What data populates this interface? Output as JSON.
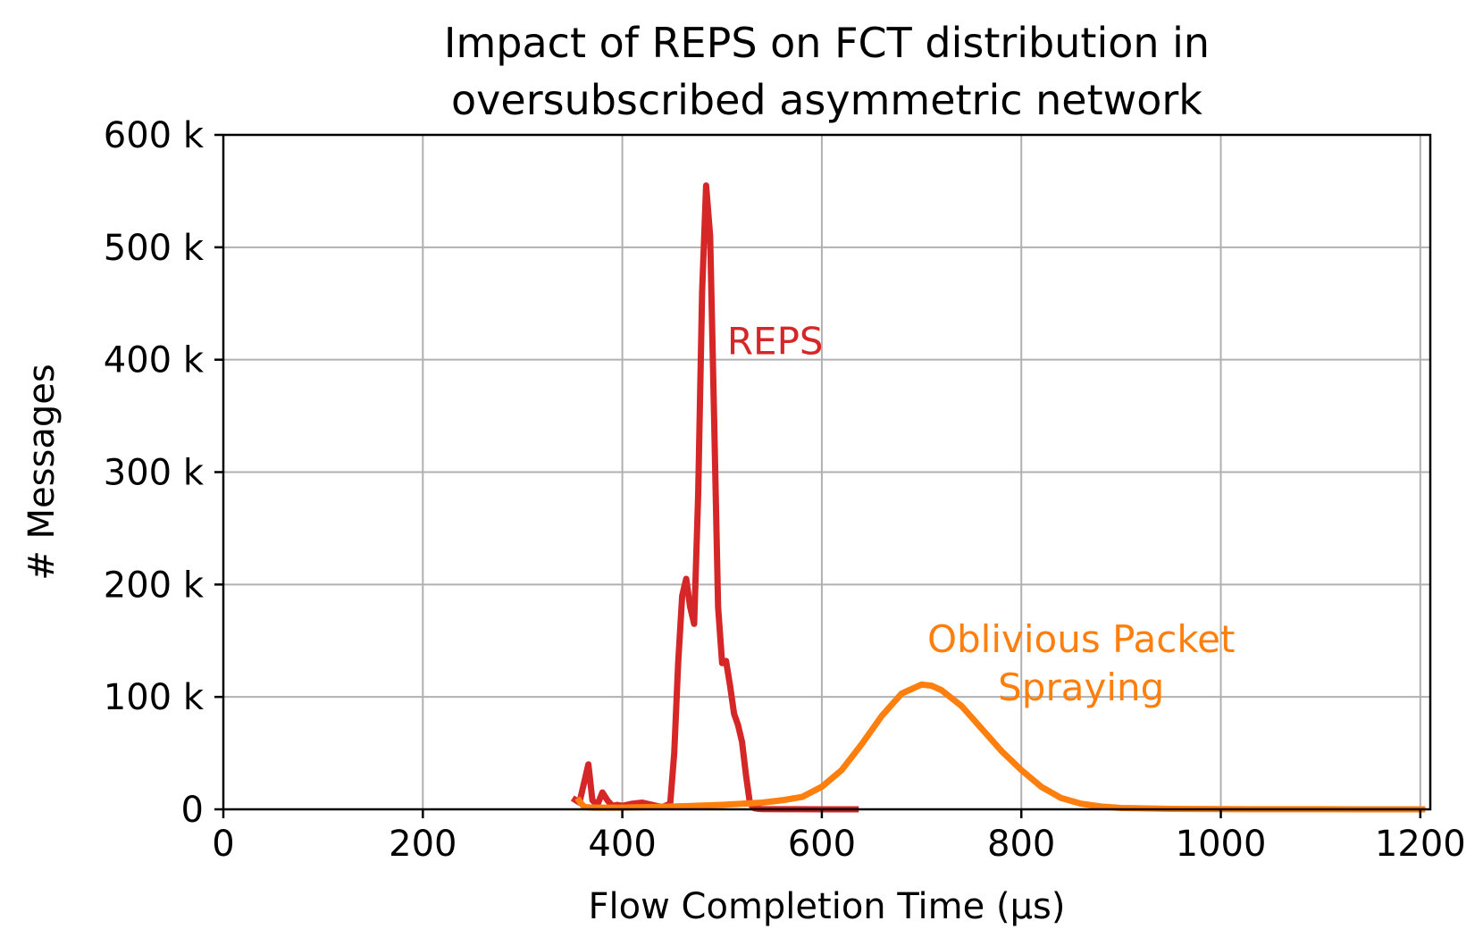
{
  "chart_data": {
    "type": "line",
    "title_lines": [
      "Impact of REPS on FCT distribution in",
      "oversubscribed asymmetric network"
    ],
    "xlabel": "Flow Completion Time (µs)",
    "ylabel": "# Messages",
    "xlim": [
      0,
      1210
    ],
    "ylim": [
      0,
      600000
    ],
    "grid": true,
    "x_ticks": [
      0,
      200,
      400,
      600,
      800,
      1000,
      1200
    ],
    "x_tick_labels": [
      "0",
      "200",
      "400",
      "600",
      "800",
      "1000",
      "1200"
    ],
    "y_ticks": [
      0,
      100000,
      200000,
      300000,
      400000,
      500000,
      600000
    ],
    "y_tick_labels": [
      "0",
      "100 k",
      "200 k",
      "300 k",
      "400 k",
      "500 k",
      "600 k"
    ],
    "series": [
      {
        "name": "REPS",
        "color": "#d62728",
        "annotation": "REPS",
        "x": [
          350,
          357,
          362,
          366,
          370,
          375,
          380,
          385,
          390,
          395,
          400,
          410,
          420,
          430,
          440,
          448,
          452,
          456,
          460,
          464,
          468,
          472,
          476,
          480,
          484,
          488,
          492,
          496,
          500,
          504,
          508,
          512,
          516,
          520,
          524,
          528,
          532,
          536,
          540,
          560,
          580,
          600,
          620,
          637
        ],
        "y": [
          10000,
          6000,
          25000,
          40000,
          8000,
          4000,
          15000,
          8000,
          3000,
          4000,
          3000,
          5000,
          6000,
          4000,
          2000,
          5000,
          50000,
          130000,
          190000,
          205000,
          180000,
          165000,
          280000,
          460000,
          555000,
          510000,
          350000,
          180000,
          130000,
          132000,
          110000,
          85000,
          75000,
          60000,
          30000,
          5000,
          1000,
          500,
          200,
          100,
          50,
          20,
          10,
          0
        ]
      },
      {
        "name": "Oblivious Packet Spraying",
        "color": "#ff7f0e",
        "annotation": "Oblivious Packet\nSpraying",
        "x": [
          355,
          358,
          362,
          370,
          400,
          450,
          500,
          540,
          560,
          580,
          600,
          620,
          640,
          660,
          680,
          700,
          710,
          720,
          740,
          760,
          780,
          800,
          820,
          840,
          860,
          880,
          900,
          950,
          1000,
          1100,
          1205
        ],
        "y": [
          10000,
          6000,
          2000,
          1500,
          1500,
          2500,
          4000,
          6000,
          8000,
          11000,
          20000,
          35000,
          58000,
          83000,
          103000,
          111000,
          110000,
          106000,
          92000,
          72000,
          52000,
          35000,
          20000,
          10000,
          5000,
          2500,
          1200,
          400,
          150,
          50,
          10
        ]
      }
    ]
  }
}
